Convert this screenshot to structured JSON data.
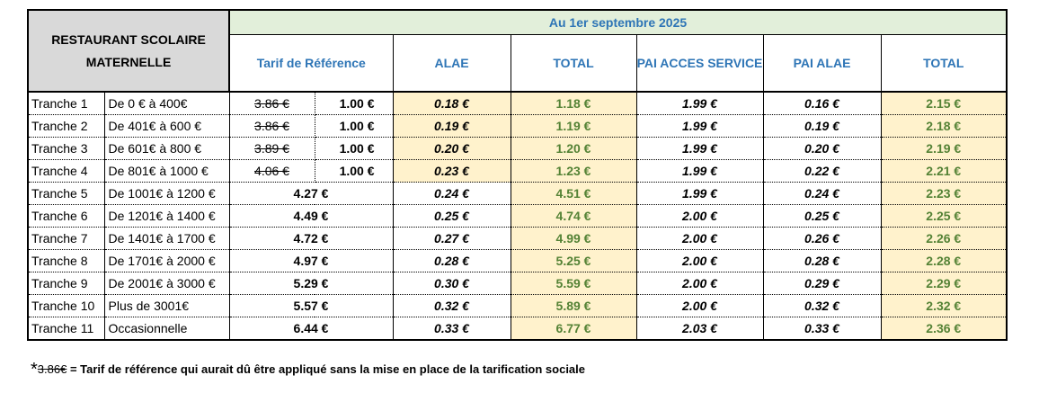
{
  "header": {
    "corner_line1": "RESTAURANT SCOLAIRE",
    "corner_line2": "MATERNELLE",
    "period": "Au 1er septembre 2025",
    "columns": [
      "Tarif de Référence",
      "ALAE",
      "TOTAL",
      "PAI ACCES SERVICE",
      "PAI ALAE",
      "TOTAL"
    ]
  },
  "rows": [
    {
      "tranche": "Tranche 1",
      "range": "De 0 € à 400€",
      "old": "3.86 €",
      "ref": "1.00 €",
      "alae": "0.18 €",
      "total": "1.18 €",
      "pai_service": "1.99 €",
      "pai_alae": "0.16 €",
      "pai_total": "2.15 €"
    },
    {
      "tranche": "Tranche 2",
      "range": "De 401€ à 600 €",
      "old": "3.86 €",
      "ref": "1.00 €",
      "alae": "0.19 €",
      "total": "1.19 €",
      "pai_service": "1.99 €",
      "pai_alae": "0.19 €",
      "pai_total": "2.18 €"
    },
    {
      "tranche": "Tranche 3",
      "range": "De 601€ à 800 €",
      "old": "3.89 €",
      "ref": "1.00 €",
      "alae": "0.20 €",
      "total": "1.20 €",
      "pai_service": "1.99 €",
      "pai_alae": "0.20 €",
      "pai_total": "2.19 €"
    },
    {
      "tranche": "Tranche 4",
      "range": "De 801€ à 1000 €",
      "old": "4.06 €",
      "ref": "1.00 €",
      "alae": "0.23 €",
      "total": "1.23 €",
      "pai_service": "1.99 €",
      "pai_alae": "0.22 €",
      "pai_total": "2.21 €"
    },
    {
      "tranche": "Tranche 5",
      "range": "De 1001€ à 1200 €",
      "old": "",
      "ref": "4.27 €",
      "alae": "0.24 €",
      "total": "4.51 €",
      "pai_service": "1.99 €",
      "pai_alae": "0.24 €",
      "pai_total": "2.23 €"
    },
    {
      "tranche": "Tranche 6",
      "range": "De 1201€ à 1400 €",
      "old": "",
      "ref": "4.49 €",
      "alae": "0.25 €",
      "total": "4.74 €",
      "pai_service": "2.00 €",
      "pai_alae": "0.25 €",
      "pai_total": "2.25 €"
    },
    {
      "tranche": "Tranche 7",
      "range": "De 1401€ à 1700 €",
      "old": "",
      "ref": "4.72 €",
      "alae": "0.27 €",
      "total": "4.99 €",
      "pai_service": "2.00 €",
      "pai_alae": "0.26 €",
      "pai_total": "2.26 €"
    },
    {
      "tranche": "Tranche 8",
      "range": "De 1701€ à 2000 €",
      "old": "",
      "ref": "4.97 €",
      "alae": "0.28 €",
      "total": "5.25 €",
      "pai_service": "2.00 €",
      "pai_alae": "0.28 €",
      "pai_total": "2.28 €"
    },
    {
      "tranche": "Tranche 9",
      "range": "De 2001€ à 3000 €",
      "old": "",
      "ref": "5.29 €",
      "alae": "0.30 €",
      "total": "5.59 €",
      "pai_service": "2.00 €",
      "pai_alae": "0.29 €",
      "pai_total": "2.29 €"
    },
    {
      "tranche": "Tranche 10",
      "range": "Plus de 3001€",
      "old": "",
      "ref": "5.57 €",
      "alae": "0.32 €",
      "total": "5.89 €",
      "pai_service": "2.00 €",
      "pai_alae": "0.32 €",
      "pai_total": "2.32 €"
    },
    {
      "tranche": "Tranche 11",
      "range": "Occasionnelle",
      "old": "",
      "ref": "6.44 €",
      "alae": "0.33 €",
      "total": "6.77 €",
      "pai_service": "2.03 €",
      "pai_alae": "0.33 €",
      "pai_total": "2.36 €"
    }
  ],
  "footnote": {
    "star": "*",
    "struck": "3.86€",
    "text": " = Tarif de référence qui aurait dû être appliqué sans la mise en place de la tarification sociale"
  },
  "colors": {
    "header_blue": "#2e75b6",
    "header_green_bg": "#e2efda",
    "total_green": "#548235",
    "highlight_bg": "#fff2cc",
    "corner_bg": "#d9d9d9"
  }
}
